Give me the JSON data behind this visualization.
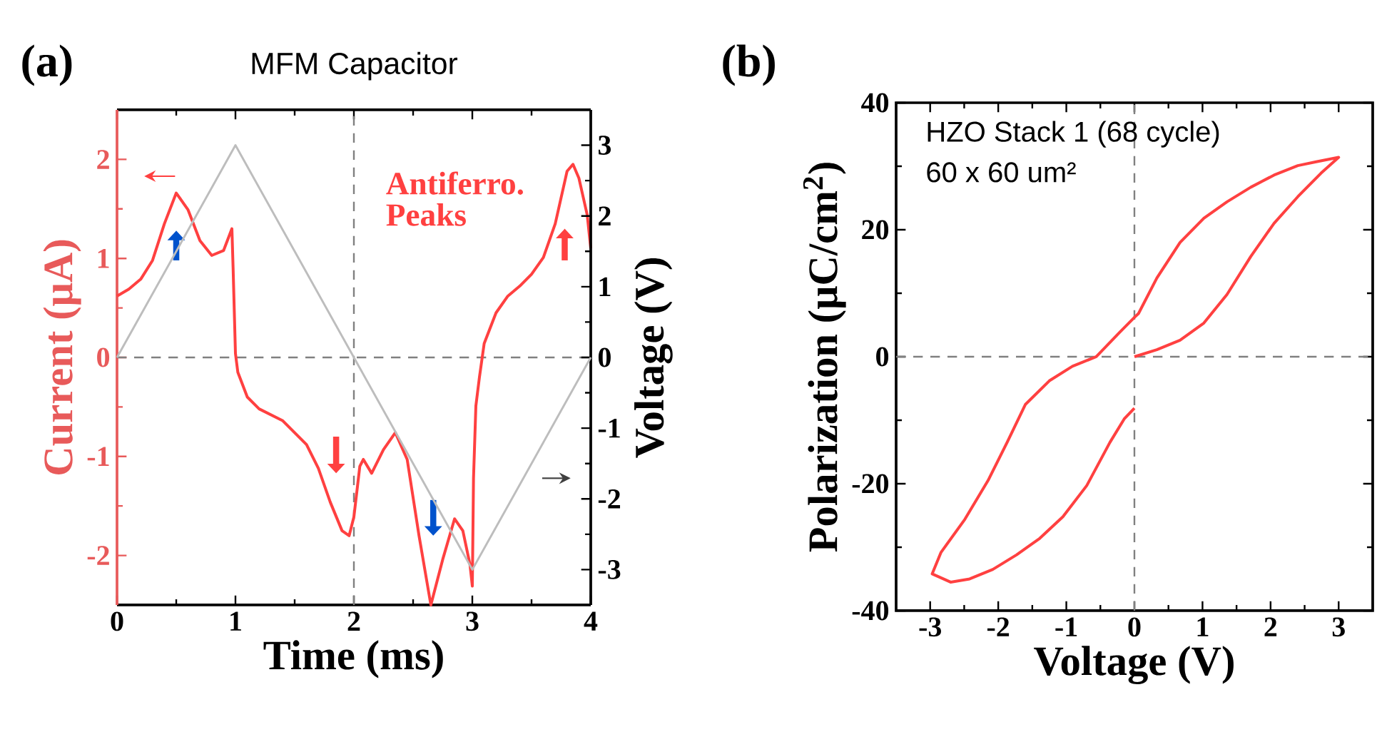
{
  "chart_data": [
    {
      "type": "line",
      "title": "MFM Capacitor",
      "xlabel": "Time (ms)",
      "ylabel": "Current (μA)",
      "y2label": "Voltage (V)",
      "xlim": [
        0,
        4
      ],
      "xticks": [
        0,
        1,
        2,
        3,
        4
      ],
      "ylim": [
        -2.5,
        2.5
      ],
      "yticks": [
        -2,
        -1,
        0,
        1,
        2
      ],
      "y2lim": [
        -3.5,
        3.5
      ],
      "y2ticks": [
        -3,
        -2,
        -1,
        0,
        1,
        2,
        3
      ],
      "series": [
        {
          "color": "#ff4040",
          "x": [
            0,
            0.1,
            0.2,
            0.3,
            0.4,
            0.5,
            0.6,
            0.7,
            0.8,
            0.9,
            0.97,
            0.98,
            1.0,
            1.02,
            1.1,
            1.2,
            1.4,
            1.6,
            1.7,
            1.8,
            1.9,
            1.96,
            2.0,
            2.05,
            2.08,
            2.15,
            2.25,
            2.35,
            2.45,
            2.55,
            2.65,
            2.75,
            2.85,
            2.92,
            2.98,
            3.0,
            3.01,
            3.03,
            3.06,
            3.1,
            3.2,
            3.3,
            3.4,
            3.5,
            3.6,
            3.7,
            3.8,
            3.85,
            3.9,
            3.97,
            4.0
          ],
          "values": [
            0.62,
            0.69,
            0.79,
            0.98,
            1.35,
            1.66,
            1.49,
            1.18,
            1.03,
            1.08,
            1.3,
            0.91,
            0.04,
            -0.15,
            -0.4,
            -0.52,
            -0.64,
            -0.88,
            -1.12,
            -1.46,
            -1.75,
            -1.8,
            -1.61,
            -1.1,
            -1.03,
            -1.17,
            -0.93,
            -0.76,
            -1.03,
            -1.8,
            -2.5,
            -2.04,
            -1.63,
            -1.75,
            -2.09,
            -2.31,
            -1.22,
            -0.49,
            -0.2,
            0.14,
            0.45,
            0.62,
            0.72,
            0.84,
            1.01,
            1.35,
            1.88,
            1.95,
            1.81,
            1.44,
            1.1
          ]
        },
        {
          "color": "#bdbdbd",
          "axis": "y2",
          "x": [
            0,
            1,
            3,
            4
          ],
          "values": [
            0,
            3,
            -3,
            0
          ]
        }
      ],
      "ref_lines": [
        {
          "axis": "x",
          "value": 2,
          "color": "#808080",
          "line_style": "dashed"
        },
        {
          "axis": "y",
          "value": 0,
          "color": "#808080",
          "line_style": "dashed"
        }
      ],
      "annotations": [
        "(a)",
        "Antiferro.",
        "Peaks"
      ]
    },
    {
      "type": "line",
      "xlabel": "Voltage (V)",
      "ylabel": "Polarization (μC/cm$^{2}$)",
      "xlim": [
        -3.5,
        3.5
      ],
      "xticks": [
        -3,
        -2,
        -1,
        0,
        1,
        2,
        3
      ],
      "ylim": [
        -40,
        40
      ],
      "yticks": [
        -40,
        -20,
        0,
        20,
        40
      ],
      "series": [
        {
          "color": "#ff4040",
          "x": [
            0,
            0.33,
            0.67,
            1.02,
            1.36,
            1.71,
            2.05,
            2.4,
            2.74,
            3,
            2.67,
            2.4,
            2.05,
            1.71,
            1.36,
            1.02,
            0.67,
            0.33,
            0.06,
            0,
            -0.22,
            -0.56,
            -0.91,
            -1.25,
            -1.6,
            -1.87,
            -2.15,
            -2.49,
            -2.84,
            -2.97,
            -2.7,
            -2.42,
            -2.08,
            -1.73,
            -1.39,
            -1.05,
            -0.7,
            -0.36,
            -0.15,
            0
          ],
          "values": [
            0,
            1.1,
            2.6,
            5.3,
            9.8,
            15.8,
            21,
            25.2,
            28.9,
            31.4,
            30.7,
            30.1,
            28.6,
            26.7,
            24.4,
            21.8,
            18,
            12.4,
            6.8,
            6.2,
            3.8,
            0,
            -1.5,
            -3.8,
            -7.5,
            -13.5,
            -19.5,
            -25.6,
            -30.8,
            -34.2,
            -35.5,
            -35,
            -33.5,
            -31.2,
            -28.6,
            -25.2,
            -20.3,
            -13.5,
            -9.8,
            -8.1
          ]
        }
      ],
      "ref_lines": [
        {
          "axis": "x",
          "value": 0,
          "color": "#808080",
          "line_style": "dashed"
        },
        {
          "axis": "y",
          "value": 0,
          "color": "#808080",
          "line_style": "dashed"
        }
      ],
      "annotations": [
        "(b)",
        "HZO Stack 1 (68 cycle)",
        "60 x 60 um²"
      ]
    }
  ]
}
